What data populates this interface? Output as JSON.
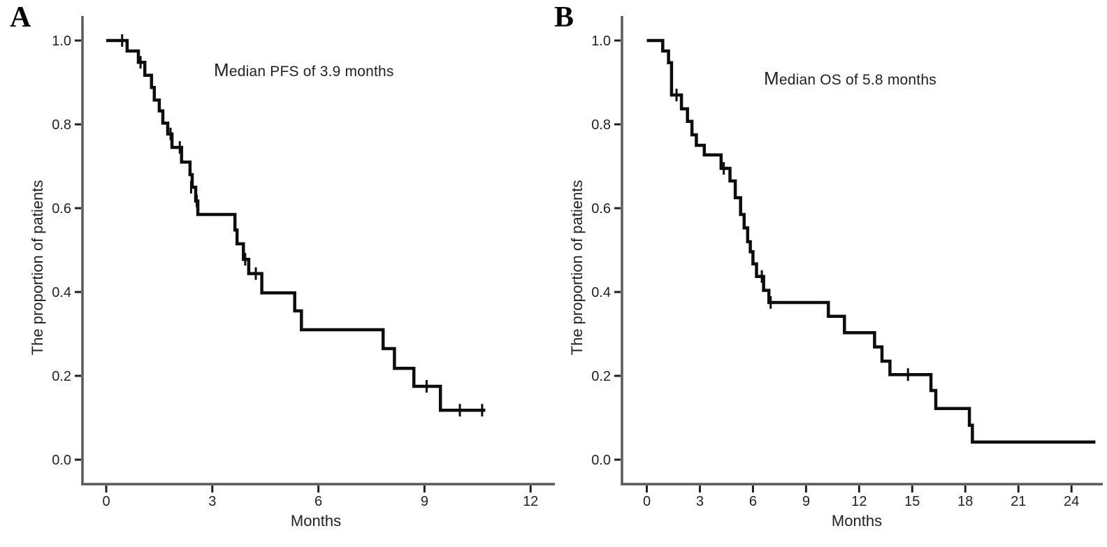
{
  "figure": {
    "background": "#ffffff",
    "colors": {
      "curve": "#0d0d0d",
      "axis_line": "#58595b",
      "tick_mark": "#231f20",
      "text": "#231f20"
    },
    "panels": [
      {
        "letter": "A",
        "annotation": "Median PFS of 3.9 months",
        "x_label": "Months",
        "y_label": "The proportion of patients"
      },
      {
        "letter": "B",
        "annotation": "Median OS of 5.8 months",
        "x_label": "Months",
        "y_label": "The proportion of patients"
      }
    ]
  },
  "chart_data": [
    {
      "type": "line",
      "subtype": "kaplan_meier_step",
      "panel": "A",
      "endpoint": "PFS",
      "median_months": 3.9,
      "annotation": "Median PFS of 3.9 months",
      "xlabel": "Months",
      "ylabel": "The proportion of patients",
      "xlim": [
        0,
        12.7
      ],
      "ylim": [
        0.0,
        1.0
      ],
      "xticks": [
        0,
        3,
        6,
        9,
        12
      ],
      "ytick_labels": [
        "1.0",
        "0.8",
        "0.6",
        "0.4",
        "0.2",
        "0.0"
      ],
      "grid": false,
      "legend": "none",
      "curve_start_month": 0,
      "curve_end_month": 10.72,
      "steps": [
        [
          0,
          1.0
        ],
        [
          0.59,
          0.975
        ],
        [
          0.91,
          0.948
        ],
        [
          1.09,
          0.917
        ],
        [
          1.28,
          0.888
        ],
        [
          1.36,
          0.858
        ],
        [
          1.5,
          0.832
        ],
        [
          1.6,
          0.803
        ],
        [
          1.74,
          0.777
        ],
        [
          1.86,
          0.745
        ],
        [
          2.13,
          0.71
        ],
        [
          2.37,
          0.68
        ],
        [
          2.43,
          0.65
        ],
        [
          2.53,
          0.617
        ],
        [
          2.59,
          0.585
        ],
        [
          3.64,
          0.548
        ],
        [
          3.7,
          0.515
        ],
        [
          3.88,
          0.478
        ],
        [
          4.03,
          0.444
        ],
        [
          4.4,
          0.398
        ],
        [
          5.33,
          0.355
        ],
        [
          5.52,
          0.31
        ],
        [
          7.83,
          0.265
        ],
        [
          8.15,
          0.218
        ],
        [
          8.7,
          0.175
        ],
        [
          9.45,
          0.118
        ]
      ],
      "censor_marks": [
        [
          0.45,
          1.0
        ],
        [
          0.97,
          0.948
        ],
        [
          1.82,
          0.777
        ],
        [
          2.08,
          0.745
        ],
        [
          2.4,
          0.65
        ],
        [
          2.56,
          0.617
        ],
        [
          3.93,
          0.478
        ],
        [
          4.23,
          0.444
        ],
        [
          9.06,
          0.175
        ],
        [
          10.0,
          0.118
        ],
        [
          10.63,
          0.118
        ]
      ]
    },
    {
      "type": "line",
      "subtype": "kaplan_meier_step",
      "panel": "B",
      "endpoint": "OS",
      "median_months": 5.8,
      "annotation": "Median OS of 5.8 months",
      "xlabel": "Months",
      "ylabel": "The proportion of patients",
      "xlim": [
        0,
        25.8
      ],
      "ylim": [
        0.0,
        1.0
      ],
      "xticks": [
        0,
        3,
        6,
        9,
        12,
        15,
        18,
        21,
        24
      ],
      "ytick_labels": [
        "1.0",
        "0.8",
        "0.6",
        "0.4",
        "0.2",
        "0.0"
      ],
      "grid": false,
      "legend": "none",
      "curve_start_month": 0,
      "curve_end_month": 25.35,
      "steps": [
        [
          0,
          1.0
        ],
        [
          0.9,
          0.975
        ],
        [
          1.23,
          0.947
        ],
        [
          1.4,
          0.87
        ],
        [
          1.96,
          0.837
        ],
        [
          2.3,
          0.807
        ],
        [
          2.55,
          0.775
        ],
        [
          2.8,
          0.75
        ],
        [
          3.25,
          0.727
        ],
        [
          4.2,
          0.695
        ],
        [
          4.7,
          0.665
        ],
        [
          5.0,
          0.625
        ],
        [
          5.3,
          0.585
        ],
        [
          5.5,
          0.553
        ],
        [
          5.7,
          0.52
        ],
        [
          5.85,
          0.496
        ],
        [
          6.0,
          0.467
        ],
        [
          6.2,
          0.437
        ],
        [
          6.6,
          0.404
        ],
        [
          6.9,
          0.375
        ],
        [
          10.26,
          0.342
        ],
        [
          11.17,
          0.303
        ],
        [
          12.87,
          0.269
        ],
        [
          13.29,
          0.235
        ],
        [
          13.74,
          0.203
        ],
        [
          16.06,
          0.165
        ],
        [
          16.33,
          0.122
        ],
        [
          18.23,
          0.082
        ],
        [
          18.4,
          0.042
        ]
      ],
      "censor_marks": [
        [
          1.68,
          0.87
        ],
        [
          4.35,
          0.695
        ],
        [
          6.5,
          0.437
        ],
        [
          7.0,
          0.375
        ],
        [
          14.76,
          0.203
        ]
      ]
    }
  ]
}
